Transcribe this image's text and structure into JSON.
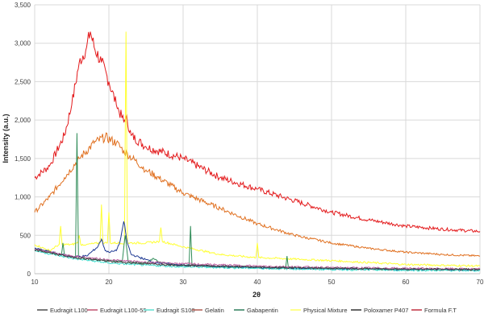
{
  "chart_data": {
    "type": "line",
    "title": "",
    "xlabel": "2θ",
    "ylabel": "Intensity (a.u.)",
    "xlim": [
      10,
      70
    ],
    "ylim": [
      0,
      3500
    ],
    "xticks": [
      "10",
      "20",
      "30",
      "40",
      "50",
      "60",
      "70"
    ],
    "yticks": [
      "0",
      "500",
      "1,000",
      "1,500",
      "2,000",
      "2,500",
      "3,000",
      "3,500"
    ],
    "grid": true,
    "legend": "bottom",
    "legend_entries": [
      {
        "name": "Eudragit L100",
        "color": "#4d4d4d"
      },
      {
        "name": "Eudragit L100-55",
        "color": "#c0506e"
      },
      {
        "name": "Eudragit S100",
        "color": "#5ee0d0"
      },
      {
        "name": "Gelatin",
        "color": "#b05a50"
      },
      {
        "name": "Gabapentin",
        "color": "#2e7d5b"
      },
      {
        "name": "Physical Mixture",
        "color": "#ffff66"
      },
      {
        "name": "Poloxamer P407",
        "color": "#333333"
      },
      {
        "name": "Formula F.T",
        "color": "#c03040"
      }
    ],
    "series": [
      {
        "color": "#e31a1c",
        "x": [
          10,
          12,
          14,
          15,
          16,
          17,
          17.5,
          18,
          19,
          20,
          21,
          22,
          22.3,
          23,
          25,
          30,
          32,
          35,
          40,
          45,
          50,
          55,
          60,
          65,
          70
        ],
        "y": [
          1250,
          1400,
          1800,
          2200,
          2750,
          2950,
          3150,
          2950,
          2750,
          2500,
          2200,
          1980,
          2050,
          1800,
          1650,
          1500,
          1400,
          1250,
          1100,
          950,
          800,
          700,
          620,
          580,
          550
        ]
      },
      {
        "color": "#e07020",
        "x": [
          10,
          12,
          14,
          16,
          18,
          19.5,
          21,
          22,
          25,
          30,
          35,
          40,
          45,
          50,
          55,
          60,
          65,
          70
        ],
        "y": [
          800,
          1000,
          1250,
          1500,
          1700,
          1780,
          1700,
          1600,
          1350,
          1050,
          850,
          650,
          500,
          400,
          330,
          280,
          250,
          230
        ]
      },
      {
        "color": "#ffff33",
        "x": [
          10,
          12,
          13.3,
          13.5,
          13.7,
          15,
          15.8,
          16,
          16.2,
          17,
          18.8,
          19,
          19.2,
          19.8,
          20,
          20.2,
          22.1,
          22.3,
          22.5,
          25,
          26.8,
          27,
          27.2,
          30,
          35,
          39.8,
          40,
          40.2,
          50,
          60,
          70
        ],
        "y": [
          380,
          300,
          380,
          620,
          380,
          380,
          400,
          500,
          380,
          380,
          400,
          900,
          400,
          400,
          800,
          400,
          400,
          3150,
          400,
          400,
          420,
          600,
          420,
          350,
          250,
          210,
          400,
          210,
          170,
          120,
          100
        ]
      },
      {
        "color": "#2e8b57",
        "x": [
          10,
          13.6,
          13.8,
          14,
          15.5,
          15.7,
          15.9,
          19,
          21.8,
          22.2,
          22.6,
          25,
          26,
          27,
          30,
          30.8,
          31,
          31.2,
          35,
          43.8,
          44,
          44.2,
          50,
          60,
          70
        ],
        "y": [
          330,
          240,
          400,
          240,
          210,
          1830,
          210,
          180,
          160,
          500,
          160,
          140,
          200,
          140,
          110,
          110,
          620,
          110,
          90,
          70,
          230,
          70,
          65,
          55,
          50
        ]
      },
      {
        "color": "#1f3a93",
        "x": [
          10,
          15,
          17,
          18.5,
          19,
          19.5,
          20,
          21,
          21.5,
          22,
          22.5,
          23,
          26,
          30,
          40,
          50,
          60,
          70
        ],
        "y": [
          330,
          220,
          230,
          350,
          450,
          300,
          280,
          300,
          420,
          680,
          400,
          250,
          150,
          110,
          80,
          65,
          55,
          50
        ]
      },
      {
        "color": "#40e0d0",
        "x": [
          10,
          15,
          20,
          25,
          30,
          40,
          50,
          60,
          70
        ],
        "y": [
          300,
          200,
          140,
          110,
          90,
          70,
          55,
          45,
          40
        ]
      },
      {
        "color": "#c060a0",
        "x": [
          10,
          15,
          20,
          25,
          30,
          40,
          50,
          60,
          70
        ],
        "y": [
          320,
          230,
          180,
          150,
          130,
          100,
          80,
          70,
          60
        ]
      },
      {
        "color": "#404040",
        "x": [
          10,
          15,
          20,
          25,
          30,
          40,
          50,
          60,
          70
        ],
        "y": [
          310,
          215,
          160,
          130,
          110,
          85,
          70,
          60,
          55
        ]
      }
    ]
  }
}
